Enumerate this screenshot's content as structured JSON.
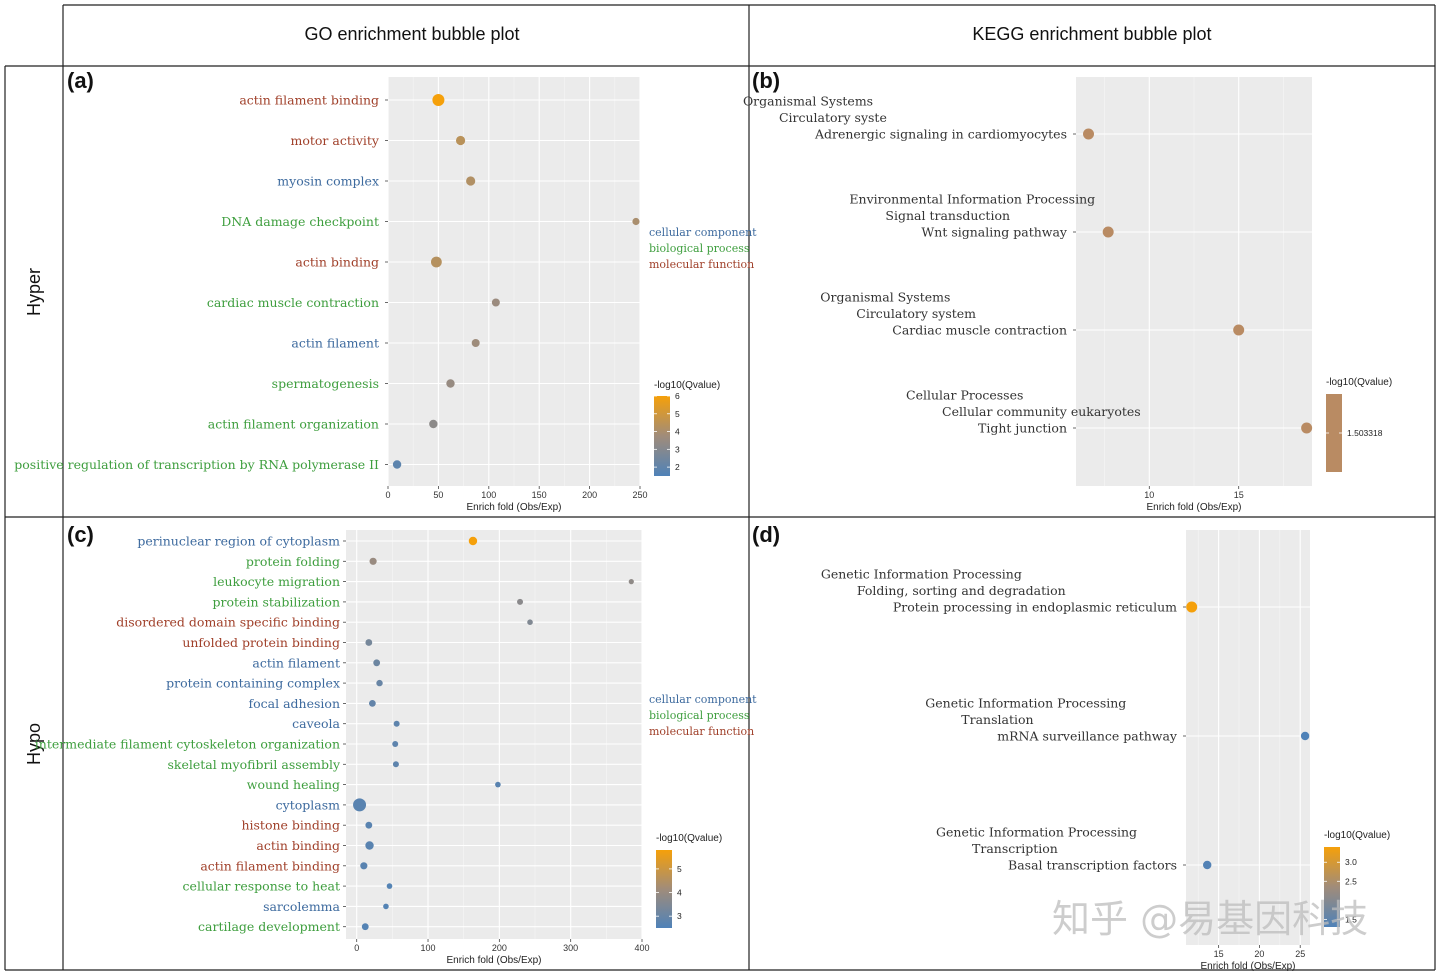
{
  "headers": {
    "col1": "GO enrichment bubble plot",
    "col2": "KEGG enrichment bubble plot",
    "row1": "Hyper",
    "row2": "Hypo"
  },
  "colors": {
    "cellular_component": "#3d6a9e",
    "biological_process": "#3e9e3e",
    "molecular_function": "#a0402a",
    "scale_low": "#4f82b8",
    "scale_mid": "#a08c7a",
    "scale_high": "#f5a00a"
  },
  "legend_categories": [
    "cellular component",
    "biological process",
    "molecular function"
  ],
  "watermark": "知乎 @易基因科技",
  "chart_data": [
    {
      "panel": "(a)",
      "type": "scatter",
      "xlabel": "Enrich fold (Obs/Exp)",
      "xlim": [
        0,
        250
      ],
      "xticks": [
        0,
        50,
        100,
        150,
        200,
        250
      ],
      "color_title": "-log10(Qvalue)",
      "color_ticks": [
        2,
        3,
        4,
        5,
        6
      ],
      "color_range": [
        1.5,
        6
      ],
      "points": [
        {
          "label": "actin filament binding",
          "category": "molecular function",
          "x": 50,
          "q": 6.0,
          "size": 6
        },
        {
          "label": "motor activity",
          "category": "molecular function",
          "x": 72,
          "q": 4.4,
          "size": 4.6
        },
        {
          "label": "myosin complex",
          "category": "cellular component",
          "x": 82,
          "q": 4.2,
          "size": 4.6
        },
        {
          "label": "DNA damage checkpoint",
          "category": "biological process",
          "x": 246,
          "q": 4.0,
          "size": 3.6
        },
        {
          "label": "actin binding",
          "category": "molecular function",
          "x": 48,
          "q": 4.3,
          "size": 5.4
        },
        {
          "label": "cardiac muscle contraction",
          "category": "biological process",
          "x": 107,
          "q": 3.6,
          "size": 4
        },
        {
          "label": "actin filament",
          "category": "cellular component",
          "x": 87,
          "q": 3.7,
          "size": 4
        },
        {
          "label": "spermatogenesis",
          "category": "biological process",
          "x": 62,
          "q": 3.5,
          "size": 4.2
        },
        {
          "label": "actin filament organization",
          "category": "biological process",
          "x": 45,
          "q": 3.2,
          "size": 4.2
        },
        {
          "label": "positive regulation of transcription by RNA polymerase II",
          "category": "biological process",
          "x": 9,
          "q": 1.9,
          "size": 4.2
        }
      ]
    },
    {
      "panel": "(b)",
      "type": "scatter",
      "xlabel": "Enrich fold (Obs/Exp)",
      "xlim": [
        5.9,
        19.1
      ],
      "xticks": [
        10,
        15
      ],
      "color_title": "-log10(Qvalue)",
      "color_ticks": [
        1.503318
      ],
      "color_tick_labels": [
        "1.503318"
      ],
      "points": [
        {
          "lines": [
            "Organismal Systems",
            "Circulatory syste",
            "Adrenergic signaling in cardiomyocytes"
          ],
          "x": 6.6,
          "size": 5.5
        },
        {
          "lines": [
            "Environmental Information Processing",
            "Signal transduction",
            "Wnt signaling pathway"
          ],
          "x": 7.7,
          "size": 5.5
        },
        {
          "lines": [
            "Organismal Systems",
            "Circulatory system",
            "Cardiac muscle contraction"
          ],
          "x": 15.0,
          "size": 5.5
        },
        {
          "lines": [
            "Cellular Processes",
            "Cellular community eukaryotes",
            "Tight junction"
          ],
          "x": 18.8,
          "size": 5.5
        }
      ]
    },
    {
      "panel": "(c)",
      "type": "scatter",
      "xlabel": "Enrich fold (Obs/Exp)",
      "xlim": [
        -15,
        400
      ],
      "xticks": [
        0,
        100,
        200,
        300,
        400
      ],
      "color_title": "-log10(Qvalue)",
      "color_ticks": [
        3,
        4,
        5
      ],
      "color_range": [
        2.5,
        5.8
      ],
      "points": [
        {
          "label": "perinuclear region of cytoplasm",
          "category": "cellular component",
          "x": 163,
          "q": 5.8,
          "size": 4.2
        },
        {
          "label": "protein folding",
          "category": "biological process",
          "x": 23,
          "q": 4.0,
          "size": 3.6
        },
        {
          "label": "leukocyte migration",
          "category": "biological process",
          "x": 385,
          "q": 3.8,
          "size": 2.6
        },
        {
          "label": "protein stabilization",
          "category": "biological process",
          "x": 229,
          "q": 3.7,
          "size": 3.0
        },
        {
          "label": "disordered domain specific binding",
          "category": "molecular function",
          "x": 243,
          "q": 3.5,
          "size": 2.8
        },
        {
          "label": "unfolded protein binding",
          "category": "molecular function",
          "x": 17,
          "q": 3.3,
          "size": 3.4
        },
        {
          "label": "actin filament",
          "category": "cellular component",
          "x": 28,
          "q": 3.1,
          "size": 3.4
        },
        {
          "label": "protein containing complex",
          "category": "cellular component",
          "x": 32,
          "q": 3.0,
          "size": 3.2
        },
        {
          "label": "focal adhesion",
          "category": "cellular component",
          "x": 22,
          "q": 2.9,
          "size": 3.4
        },
        {
          "label": "caveola",
          "category": "cellular component",
          "x": 56,
          "q": 2.8,
          "size": 3.0
        },
        {
          "label": "intermediate filament cytoskeleton organization",
          "category": "biological process",
          "x": 54,
          "q": 2.8,
          "size": 3.0
        },
        {
          "label": "skeletal myofibril assembly",
          "category": "biological process",
          "x": 55,
          "q": 2.8,
          "size": 3.0
        },
        {
          "label": "wound healing",
          "category": "biological process",
          "x": 198,
          "q": 2.7,
          "size": 2.8
        },
        {
          "label": "cytoplasm",
          "category": "cellular component",
          "x": 4,
          "q": 2.7,
          "size": 6.5
        },
        {
          "label": "histone binding",
          "category": "molecular function",
          "x": 17,
          "q": 2.7,
          "size": 3.4
        },
        {
          "label": "actin binding",
          "category": "molecular function",
          "x": 18,
          "q": 2.7,
          "size": 4.2
        },
        {
          "label": "actin filament binding",
          "category": "molecular function",
          "x": 10,
          "q": 2.7,
          "size": 3.6
        },
        {
          "label": "cellular response to heat",
          "category": "biological process",
          "x": 46,
          "q": 2.6,
          "size": 2.8
        },
        {
          "label": "sarcolemma",
          "category": "cellular component",
          "x": 41,
          "q": 2.6,
          "size": 2.8
        },
        {
          "label": "cartilage development",
          "category": "biological process",
          "x": 12,
          "q": 2.6,
          "size": 3.4
        }
      ]
    },
    {
      "panel": "(d)",
      "type": "scatter",
      "xlabel": "Enrich fold (Obs/Exp)",
      "xlim": [
        11,
        26.2
      ],
      "xticks": [
        15,
        20,
        25
      ],
      "color_title": "-log10(Qvalue)",
      "color_ticks": [
        1.5,
        2.5,
        3.0
      ],
      "color_tick_labels": [
        "1.5",
        "2.5",
        "3.0"
      ],
      "color_range": [
        1.3,
        3.4
      ],
      "points": [
        {
          "lines": [
            "Genetic Information Processing",
            "Folding, sorting and degradation",
            "Protein processing in endoplasmic reticulum"
          ],
          "x": 11.7,
          "q": 3.4,
          "size": 5.5
        },
        {
          "lines": [
            "Genetic Information Processing",
            "Translation",
            "mRNA surveillance pathway"
          ],
          "x": 25.6,
          "q": 1.3,
          "size": 4.2
        },
        {
          "lines": [
            "Genetic Information Processing",
            "Transcription",
            "Basal transcription factors"
          ],
          "x": 13.6,
          "q": 1.35,
          "size": 4.2
        }
      ]
    }
  ]
}
